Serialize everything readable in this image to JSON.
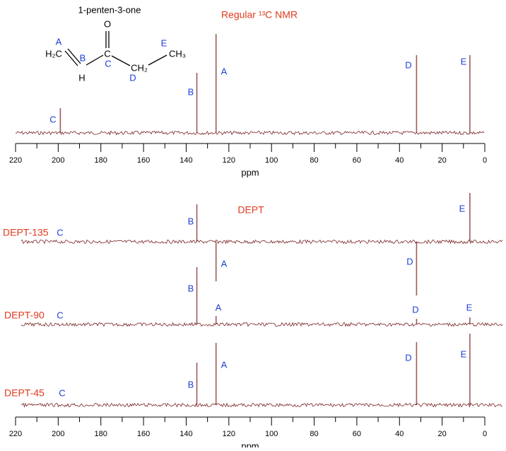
{
  "molecule": {
    "name": "1-penten-3-one",
    "atoms": [
      "O",
      "C",
      "H₂C",
      "H",
      "CH₂",
      "CH₃"
    ],
    "site_labels": [
      "A",
      "B",
      "C",
      "D",
      "E"
    ]
  },
  "dept_heading": "DEPT",
  "chart_data": [
    {
      "type": "spectrum",
      "title": "Regular ¹³C NMR",
      "x": [
        199,
        135,
        126,
        32,
        7
      ],
      "values": [
        35,
        85,
        140,
        110,
        110
      ],
      "peak_labels": [
        "C",
        "B",
        "A",
        "D",
        "E"
      ],
      "color": "#7a2424",
      "xlim": [
        220,
        0
      ],
      "xticks": [
        220,
        200,
        180,
        160,
        140,
        120,
        100,
        80,
        60,
        40,
        20,
        0
      ],
      "xlabel": "ppm"
    },
    {
      "type": "spectrum",
      "label": "DEPT-135",
      "x": [
        199,
        135,
        126,
        32,
        7
      ],
      "values": [
        0,
        53,
        -56,
        -76,
        69
      ],
      "peak_labels": [
        "C",
        "B",
        "A",
        "D",
        "E"
      ],
      "color": "#7a2424",
      "xlim": [
        220,
        0
      ]
    },
    {
      "type": "spectrum",
      "label": "DEPT-90",
      "x": [
        199,
        135,
        126,
        32,
        7
      ],
      "values": [
        0,
        81,
        12,
        8,
        10
      ],
      "peak_labels": [
        "C",
        "B",
        "A",
        "D",
        "E"
      ],
      "color": "#7a2424",
      "xlim": [
        220,
        0
      ]
    },
    {
      "type": "spectrum",
      "label": "DEPT-45",
      "x": [
        199,
        135,
        126,
        32,
        7
      ],
      "values": [
        0,
        60,
        88,
        89,
        101
      ],
      "peak_labels": [
        "C",
        "B",
        "A",
        "D",
        "E"
      ],
      "color": "#7a2424",
      "xlim": [
        220,
        0
      ],
      "xticks": [
        220,
        200,
        180,
        160,
        140,
        120,
        100,
        80,
        60,
        40,
        20,
        0
      ],
      "xlabel": "ppm"
    }
  ]
}
